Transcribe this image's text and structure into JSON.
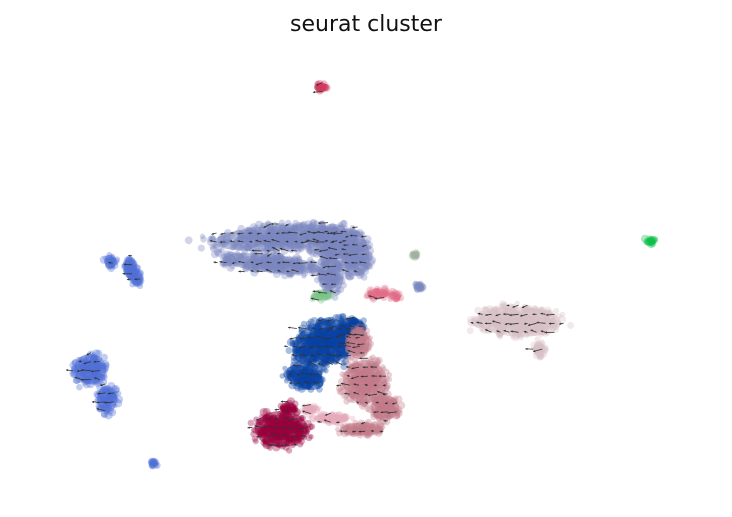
{
  "chart_data": {
    "type": "scatter",
    "subtype": "embedding-with-velocity-arrows",
    "title": "seurat cluster",
    "xlabel": "",
    "ylabel": "",
    "axes_visible": false,
    "grid": false,
    "legend": "none",
    "xlim": [
      0,
      100
    ],
    "ylim": [
      0,
      100
    ],
    "arrow_color": "#333333",
    "series": [
      {
        "color": "#7a86bf",
        "regions": [
          {
            "cx": 37,
            "cy": 57.5,
            "rx": 10.5,
            "ry": 3.2,
            "angle": 4
          },
          {
            "cx": 36,
            "cy": 51.5,
            "rx": 8,
            "ry": 2.3,
            "angle": -6
          },
          {
            "cx": 45,
            "cy": 56.5,
            "rx": 3.2,
            "ry": 4.5,
            "angle": 25
          },
          {
            "cx": 48.5,
            "cy": 54,
            "rx": 2.3,
            "ry": 6,
            "angle": 10
          },
          {
            "cx": 45,
            "cy": 48.5,
            "rx": 2,
            "ry": 4.5,
            "angle": -5
          },
          {
            "cx": 58,
            "cy": 46,
            "rx": 0.8,
            "ry": 1.1,
            "angle": 0
          }
        ]
      },
      {
        "color": "#0a43a3",
        "regions": [
          {
            "cx": 44,
            "cy": 33,
            "rx": 5.5,
            "ry": 5.5,
            "angle": 20
          },
          {
            "cx": 41,
            "cy": 25,
            "rx": 3.2,
            "ry": 2.8,
            "angle": -20
          },
          {
            "cx": 48,
            "cy": 36.5,
            "rx": 2.3,
            "ry": 2.5,
            "angle": 0
          }
        ]
      },
      {
        "color": "#c37a8a",
        "regions": [
          {
            "cx": 50,
            "cy": 24,
            "rx": 3.6,
            "ry": 5.5,
            "angle": 0
          },
          {
            "cx": 53,
            "cy": 18,
            "rx": 2.3,
            "ry": 3.2,
            "angle": 0
          },
          {
            "cx": 49,
            "cy": 33,
            "rx": 1.8,
            "ry": 4,
            "angle": 0
          },
          {
            "cx": 49.5,
            "cy": 13,
            "rx": 3.5,
            "ry": 1.6,
            "angle": 0
          }
        ]
      },
      {
        "color": "#e6a9bb",
        "regions": [
          {
            "cx": 45,
            "cy": 15.5,
            "rx": 2.8,
            "ry": 1.2,
            "angle": 0
          },
          {
            "cx": 42,
            "cy": 17.5,
            "rx": 1.4,
            "ry": 1.2,
            "angle": 0
          }
        ]
      },
      {
        "color": "#98003d",
        "regions": [
          {
            "cx": 37.5,
            "cy": 13,
            "rx": 4.3,
            "ry": 4.6,
            "angle": 0
          },
          {
            "cx": 38.5,
            "cy": 18,
            "rx": 1.3,
            "ry": 1.4,
            "angle": 0
          }
        ]
      },
      {
        "color": "#d8bfc6",
        "regions": [
          {
            "cx": 73,
            "cy": 38,
            "rx": 6.8,
            "ry": 3.8,
            "angle": -2
          },
          {
            "cx": 76,
            "cy": 31.5,
            "rx": 0.9,
            "ry": 2.2,
            "angle": 10
          }
        ]
      },
      {
        "color": "#4f6fd8",
        "regions": [
          {
            "cx": 9,
            "cy": 27,
            "rx": 2.6,
            "ry": 3.8,
            "angle": 0
          },
          {
            "cx": 11.5,
            "cy": 20,
            "rx": 1.6,
            "ry": 3.5,
            "angle": 0
          },
          {
            "cx": 12,
            "cy": 52,
            "rx": 1,
            "ry": 1.7,
            "angle": 0
          },
          {
            "cx": 15,
            "cy": 50.5,
            "rx": 1.1,
            "ry": 2.8,
            "angle": 0
          },
          {
            "cx": 16,
            "cy": 48,
            "rx": 0.9,
            "ry": 2,
            "angle": 0
          },
          {
            "cx": 18.5,
            "cy": 5,
            "rx": 0.7,
            "ry": 0.8,
            "angle": 0
          }
        ]
      },
      {
        "color": "#e36a86",
        "regions": [
          {
            "cx": 52,
            "cy": 44.5,
            "rx": 1.8,
            "ry": 1.2,
            "angle": 0
          },
          {
            "cx": 54.5,
            "cy": 44,
            "rx": 1,
            "ry": 1,
            "angle": 0
          }
        ]
      },
      {
        "color": "#d2385e",
        "regions": [
          {
            "cx": 43.5,
            "cy": 92.5,
            "rx": 1.2,
            "ry": 1.1,
            "angle": 0
          }
        ]
      },
      {
        "color": "#7cc787",
        "regions": [
          {
            "cx": 43.5,
            "cy": 44,
            "rx": 1.7,
            "ry": 1.1,
            "angle": 0
          }
        ]
      },
      {
        "color": "#9fb39d",
        "regions": [
          {
            "cx": 57.5,
            "cy": 53.5,
            "rx": 0.6,
            "ry": 0.7,
            "angle": 0
          }
        ]
      },
      {
        "color": "#0dc04b",
        "regions": [
          {
            "cx": 92.5,
            "cy": 56.5,
            "rx": 0.9,
            "ry": 1.0,
            "angle": 0
          }
        ]
      }
    ]
  }
}
